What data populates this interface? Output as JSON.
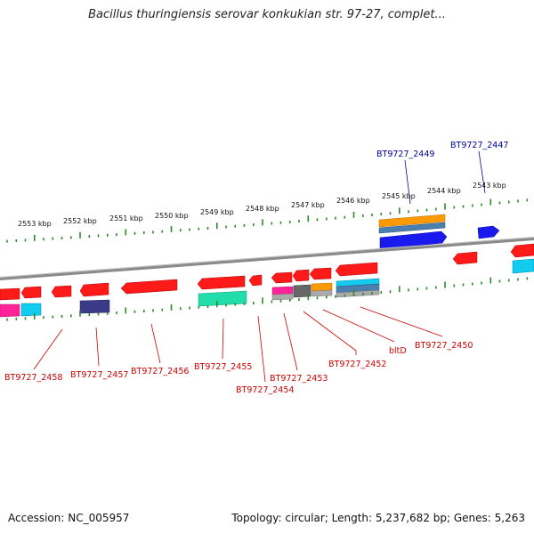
{
  "title": "Bacillus thuringiensis serovar konkukian str. 97-27, complet...",
  "footer": {
    "accession": "Accession: NC_005957",
    "topology": "Topology: circular; Length: 5,237,682 bp; Genes: 5,263"
  },
  "colors": {
    "backbone": "#8a8a8a",
    "tick": "#2a8a2a",
    "label_red": "#cc0000",
    "label_blue": "#000099",
    "gene_red": "#ff1a1a",
    "gene_blue": "#1a1aee",
    "gene_orange": "#ff9900",
    "gene_steel": "#4a7fb0",
    "gene_teal": "#22ddaa",
    "gene_magenta": "#ff2299",
    "gene_cyan": "#11ccee",
    "gene_navy": "#3a3a88",
    "gene_gray": "#666666"
  },
  "scale_labels": [
    "2553 kbp",
    "2552 kbp",
    "2551 kbp",
    "2550 kbp",
    "2549 kbp",
    "2548 kbp",
    "2547 kbp",
    "2546 kbp",
    "2545 kbp",
    "2544 kbp",
    "2543 kbp"
  ],
  "gene_labels_top": [
    "BT9727_2449",
    "BT9727_2447"
  ],
  "gene_labels_bottom": [
    "BT9727_2458",
    "BT9727_2457",
    "BT9727_2456",
    "BT9727_2455",
    "BT9727_2454",
    "BT9727_2453",
    "BT9727_2452",
    "bltD",
    "BT9727_2450"
  ]
}
